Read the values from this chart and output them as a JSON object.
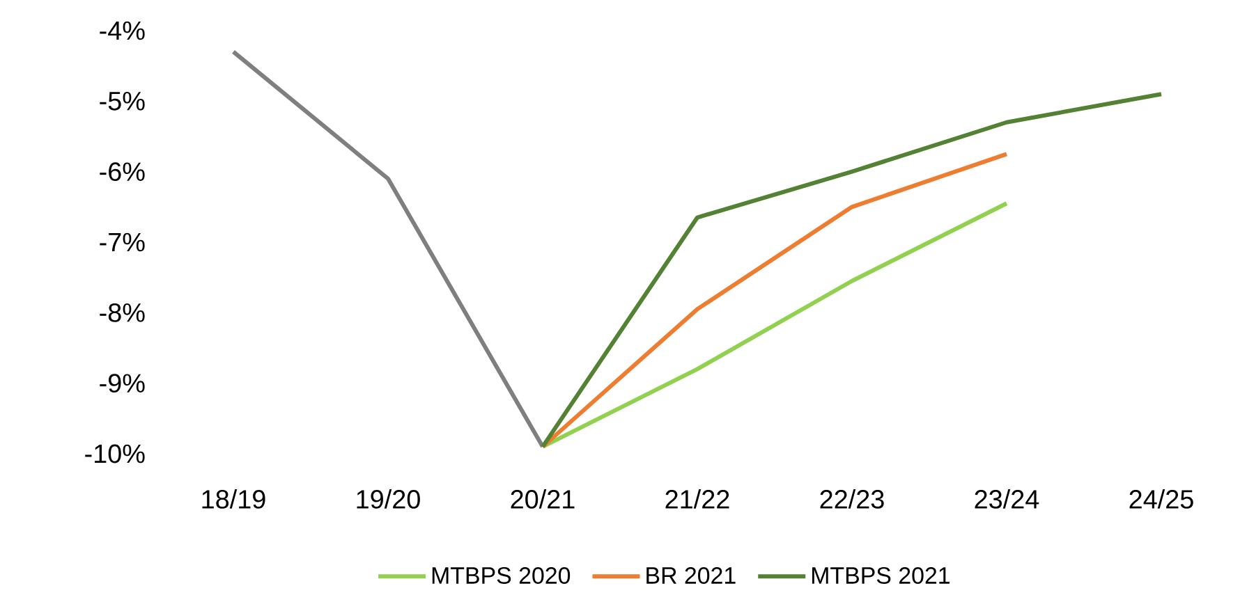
{
  "chart_data": {
    "type": "line",
    "categories": [
      "18/19",
      "19/20",
      "20/21",
      "21/22",
      "22/23",
      "23/24",
      "24/25"
    ],
    "ylim": [
      -10,
      -4
    ],
    "yticks": [
      {
        "value": -10,
        "label": "-10%"
      },
      {
        "value": -9,
        "label": "-9%"
      },
      {
        "value": -8,
        "label": "-8%"
      },
      {
        "value": -7,
        "label": "-7%"
      },
      {
        "value": -6,
        "label": "-6%"
      },
      {
        "value": -5,
        "label": "-5%"
      },
      {
        "value": -4,
        "label": "-4%"
      }
    ],
    "legend": "bottom",
    "series": [
      {
        "color": "#7f7f7f",
        "values": [
          -4.3,
          -6.1,
          -9.9,
          null,
          null,
          null,
          null
        ]
      },
      {
        "name": "MTBPS 2020",
        "color": "#92d050",
        "values": [
          null,
          null,
          -9.9,
          -8.8,
          -7.55,
          -6.45,
          null
        ]
      },
      {
        "name": "BR 2021",
        "color": "#ed7d31",
        "values": [
          null,
          null,
          -9.9,
          -7.95,
          -6.5,
          -5.75,
          null
        ]
      },
      {
        "name": "MTBPS 2021",
        "color": "#548235",
        "values": [
          null,
          null,
          -9.9,
          -6.65,
          -6.0,
          -5.3,
          -4.9
        ]
      }
    ]
  }
}
